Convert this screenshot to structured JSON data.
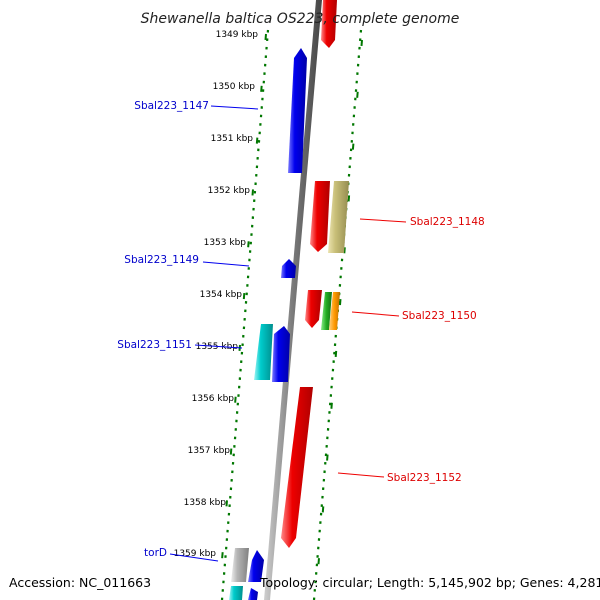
{
  "title": "Shewanella baltica OS223, complete genome",
  "accession": "Accession: NC_011663",
  "topology": "Topology: circular; Length: 5,145,902 bp; Genes: 4,281",
  "colors": {
    "forward": "#ee0000",
    "reverse": "#0000ee",
    "cyan": "#00cccc",
    "olive": "#c8bf78",
    "grey": "#b5b5b5",
    "green": "#22aa22",
    "orange": "#ff9900",
    "dots": "#007700",
    "backbone": "#888888"
  },
  "ticks": [
    {
      "label": "1349 kbp"
    },
    {
      "label": "1350 kbp"
    },
    {
      "label": "1351 kbp"
    },
    {
      "label": "1352 kbp"
    },
    {
      "label": "1353 kbp"
    },
    {
      "label": "1354 kbp"
    },
    {
      "label": "1355 kbp"
    },
    {
      "label": "1356 kbp"
    },
    {
      "label": "1357 kbp"
    },
    {
      "label": "1358 kbp"
    },
    {
      "label": "1359 kbp"
    }
  ],
  "gene_labels": [
    {
      "text": "Sbal223_1147",
      "strand": "reverse"
    },
    {
      "text": "Sbal223_1148",
      "strand": "forward"
    },
    {
      "text": "Sbal223_1149",
      "strand": "reverse"
    },
    {
      "text": "Sbal223_1150",
      "strand": "forward"
    },
    {
      "text": "Sbal223_1151",
      "strand": "reverse"
    },
    {
      "text": "Sbal223_1152",
      "strand": "forward"
    },
    {
      "text": "torD",
      "strand": "reverse"
    }
  ]
}
